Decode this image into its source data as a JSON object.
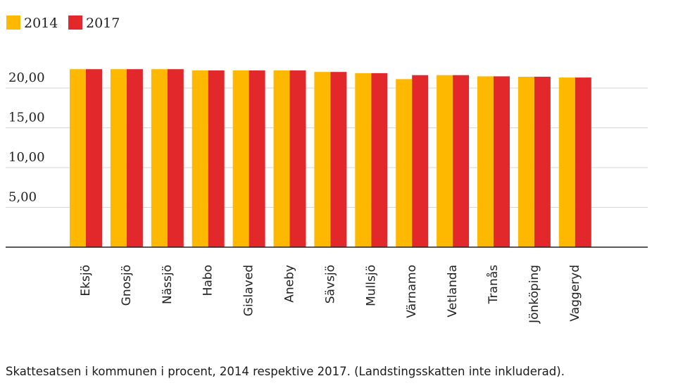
{
  "chart_data": {
    "type": "bar",
    "categories": [
      "Eksjö",
      "Gnosjö",
      "Nässjö",
      "Habo",
      "Gislaved",
      "Aneby",
      "Sävsjö",
      "Mullsjö",
      "Värnamo",
      "Vetlanda",
      "Tranås",
      "Jönköping",
      "Vaggeryd"
    ],
    "series": [
      {
        "name": "2014",
        "color": "#FFB800",
        "values": [
          22.37,
          22.37,
          22.37,
          22.21,
          22.21,
          22.21,
          22.02,
          21.87,
          21.12,
          21.62,
          21.47,
          21.42,
          21.32
        ]
      },
      {
        "name": "2017",
        "color": "#E3282B",
        "values": [
          22.37,
          22.37,
          22.37,
          22.21,
          22.21,
          22.21,
          22.02,
          21.87,
          21.62,
          21.62,
          21.47,
          21.42,
          21.32
        ]
      }
    ],
    "yticks": [
      "5,00",
      "10,00",
      "15,00",
      "20,00"
    ],
    "ylim": [
      0,
      25
    ],
    "grid": true,
    "legend_position": "top-left",
    "caption": "Skattesatsen i kommunen i procent, 2014 respektive 2017. (Landstingsskatten inte inkluderad)."
  }
}
